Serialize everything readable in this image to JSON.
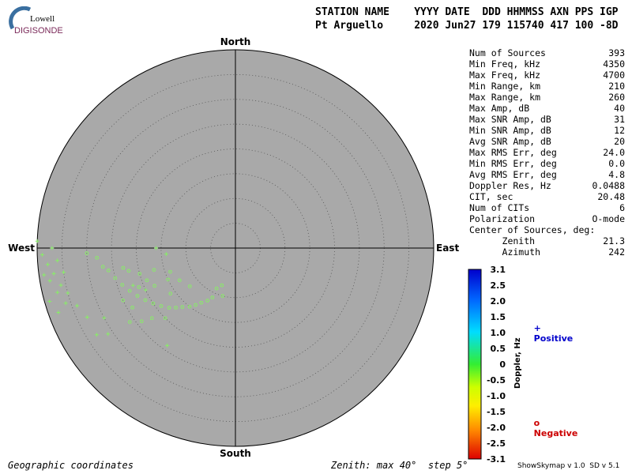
{
  "header": {
    "line1": "STATION NAME    YYYY DATE  DDD HHMMSS AXN PPS IGP",
    "line2": "Pt Arguello     2020 Jun27 179 115740 417 100 -8D"
  },
  "logo": {
    "top": "Lowell",
    "bottom": "DIGISONDE"
  },
  "compass": {
    "north": "North",
    "south": "South",
    "east": "East",
    "west": "West"
  },
  "stats": [
    {
      "label": "Num of Sources",
      "value": "393"
    },
    {
      "label": "Min Freq, kHz",
      "value": "4350"
    },
    {
      "label": "Max Freq, kHz",
      "value": "4700"
    },
    {
      "label": "Min Range, km",
      "value": "210"
    },
    {
      "label": "Max Range, km",
      "value": "260"
    },
    {
      "label": "Max Amp, dB",
      "value": "40"
    },
    {
      "label": "Max SNR Amp, dB",
      "value": "31"
    },
    {
      "label": "Min SNR Amp, dB",
      "value": "12"
    },
    {
      "label": "Avg SNR Amp, dB",
      "value": "20"
    },
    {
      "label": "Max RMS Err, deg",
      "value": "24.0"
    },
    {
      "label": "Min RMS Err, deg",
      "value": "0.0"
    },
    {
      "label": "Avg RMS Err, deg",
      "value": "4.8"
    },
    {
      "label": "Doppler Res, Hz",
      "value": "0.0488"
    },
    {
      "label": "CIT, sec",
      "value": "20.48"
    },
    {
      "label": "Num of CITs",
      "value": "6"
    },
    {
      "label": "Polarization",
      "value": "O-mode"
    },
    {
      "label": "Center of Sources, deg:",
      "value": ""
    },
    {
      "label": "      Zenith",
      "value": "21.3"
    },
    {
      "label": "      Azimuth",
      "value": "242"
    }
  ],
  "colorbar": {
    "title": "Doppler, Hz",
    "ticks": [
      "3.1",
      "2.5",
      "2.0",
      "1.5",
      "1.0",
      "0.5",
      "0",
      "-0.5",
      "-1.0",
      "-1.5",
      "-2.0",
      "-2.5",
      "-3.1"
    ],
    "range": [
      -3.1,
      3.1
    ]
  },
  "legend": {
    "positive": {
      "symbol": "+",
      "label": "Positive",
      "color": "#0000cc"
    },
    "negative": {
      "symbol": "o",
      "label": "Negative",
      "color": "#cc0000"
    }
  },
  "footer": {
    "left": "Geographic coordinates",
    "middle": "Zenith: max 40°  step 5°",
    "right": "ShowSkymap v 1.0  SD v 5.1"
  },
  "colors": {
    "disk": "#a9a9a9",
    "points": "#88ee66",
    "logo_arc": "#3a6fa0",
    "logo_text": "#7b2a5a"
  },
  "chart_data": {
    "type": "scatter",
    "title": "",
    "coordinate_system": "polar (zenith angle, azimuth)",
    "zenith_max_deg": 40,
    "zenith_step_deg": 5,
    "center_of_sources": {
      "zenith_deg": 21.3,
      "azimuth_deg": 242
    },
    "series": [
      {
        "marker": "o",
        "points": [
          [
            8,
            200
          ],
          [
            9,
            205
          ],
          [
            10,
            195
          ],
          [
            11,
            205
          ],
          [
            12,
            208
          ],
          [
            13,
            212
          ],
          [
            14,
            215
          ],
          [
            15,
            218
          ],
          [
            16,
            222
          ],
          [
            17,
            225
          ],
          [
            18,
            228
          ],
          [
            19,
            232
          ],
          [
            20,
            236
          ],
          [
            21,
            240
          ],
          [
            22,
            244
          ],
          [
            23,
            248
          ],
          [
            24,
            252
          ],
          [
            25,
            256
          ],
          [
            26,
            260
          ],
          [
            27,
            262
          ],
          [
            28,
            266
          ],
          [
            30,
            268
          ],
          [
            12,
            230
          ],
          [
            13,
            240
          ],
          [
            14,
            250
          ],
          [
            15,
            245
          ],
          [
            16,
            235
          ],
          [
            17,
            255
          ],
          [
            18,
            245
          ],
          [
            19,
            250
          ],
          [
            20,
            255
          ],
          [
            21,
            248
          ],
          [
            22,
            258
          ],
          [
            23,
            260
          ],
          [
            24,
            240
          ],
          [
            25,
            245
          ],
          [
            26,
            235
          ],
          [
            20,
            225
          ],
          [
            22,
            230
          ],
          [
            24,
            232
          ]
        ]
      },
      {
        "marker": "+",
        "points": [
          [
            36,
            258
          ],
          [
            37,
            262
          ],
          [
            38,
            265
          ],
          [
            39,
            268
          ],
          [
            40,
            272
          ],
          [
            35,
            255
          ],
          [
            36,
            252
          ],
          [
            37,
            270
          ],
          [
            38,
            250
          ],
          [
            39,
            262
          ],
          [
            34,
            250
          ],
          [
            33,
            245
          ],
          [
            35,
            262
          ],
          [
            36,
            266
          ],
          [
            37,
            256
          ],
          [
            38,
            260
          ],
          [
            39,
            254
          ],
          [
            33,
            238
          ],
          [
            31,
            236
          ],
          [
            30,
            242
          ],
          [
            14,
            265
          ],
          [
            16,
            270
          ],
          [
            24,
            215
          ],
          [
            22,
            250
          ],
          [
            20,
            245
          ]
        ]
      }
    ]
  }
}
